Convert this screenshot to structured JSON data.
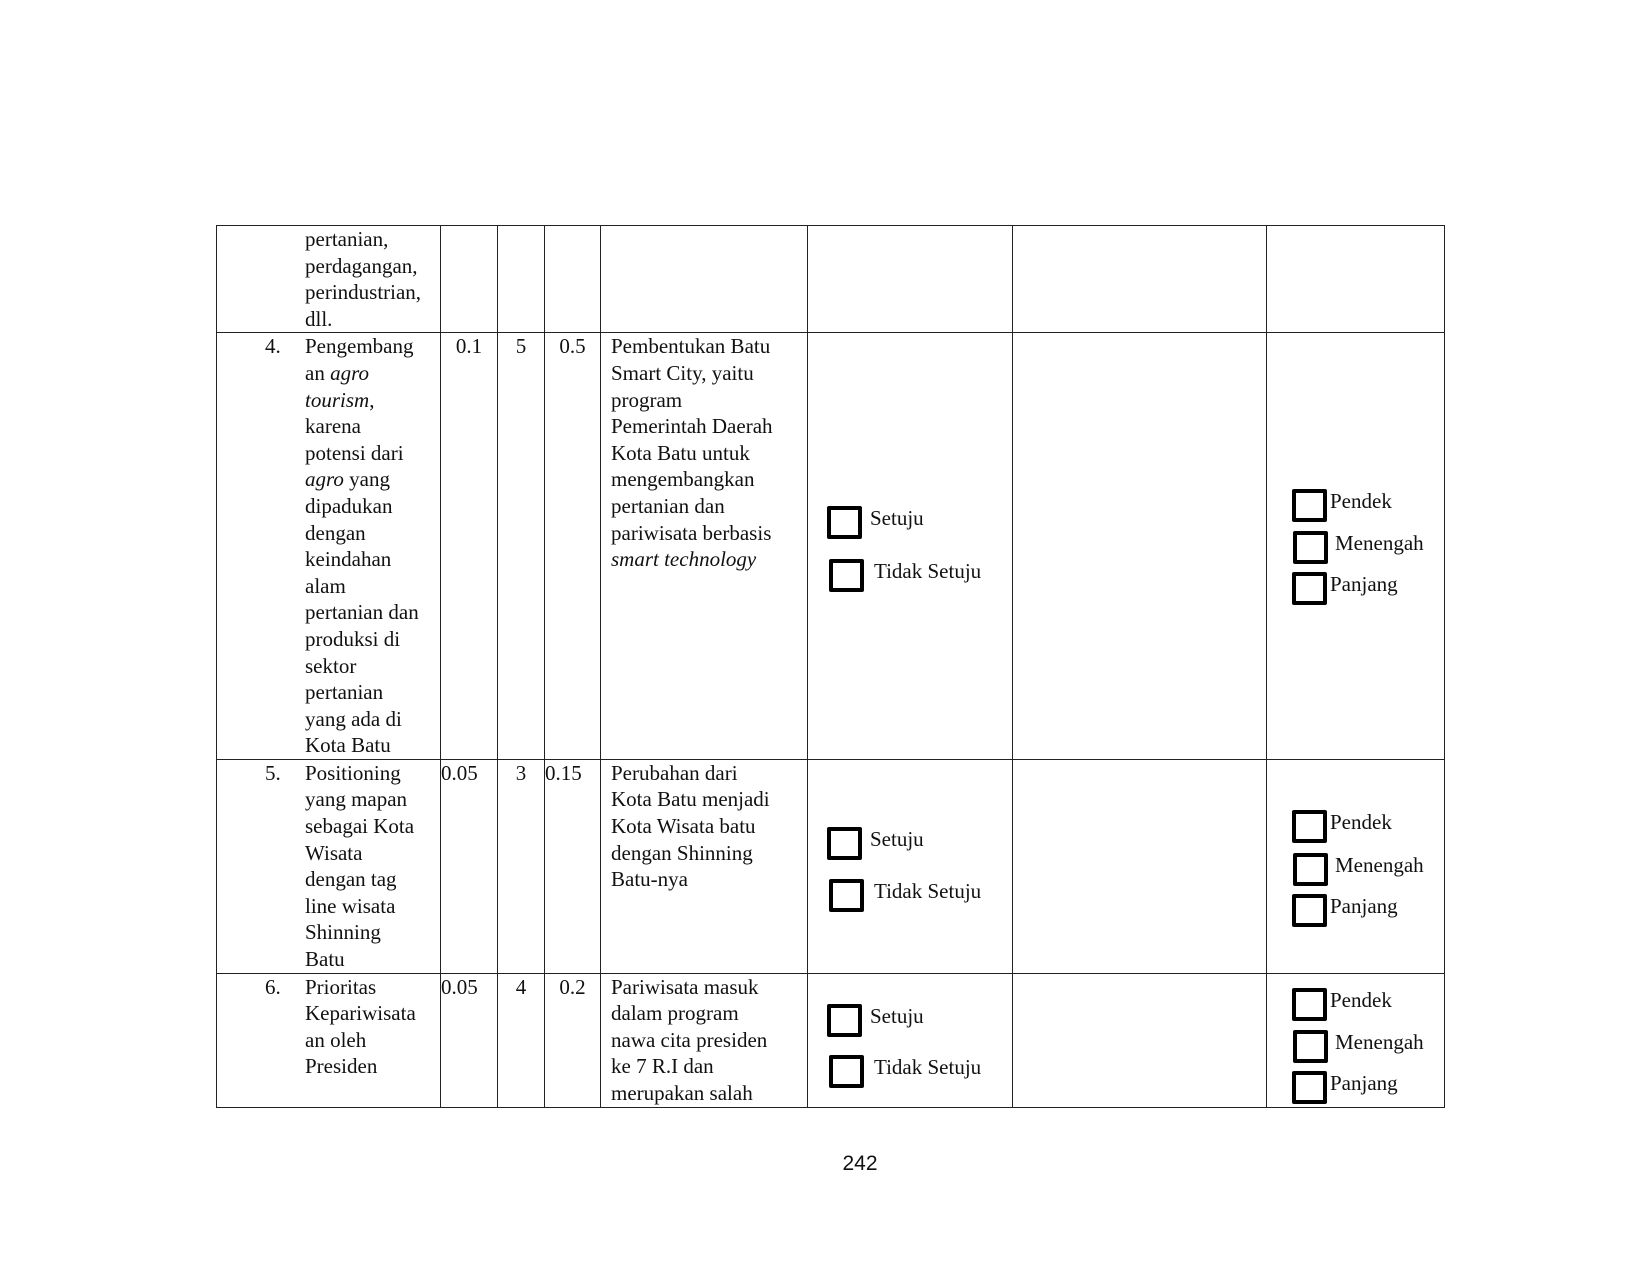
{
  "table": {
    "rows": [
      {
        "number": "",
        "indicator": [
          "pertanian,",
          "perdagangan,",
          "perindustrian,",
          "dll."
        ],
        "bobot": "",
        "rating": "",
        "skor": "",
        "description": [],
        "has_options": false
      },
      {
        "number": "4.",
        "indicator": [
          "Pengembang",
          [
            [
              "an ",
              0
            ],
            [
              "agro",
              1
            ]
          ],
          [
            [
              "tourism",
              1
            ],
            [
              ",",
              0
            ]
          ],
          "karena",
          "potensi dari",
          [
            [
              "agro",
              1
            ],
            [
              " yang",
              0
            ]
          ],
          "dipadukan",
          "dengan",
          "keindahan",
          "alam",
          "pertanian dan",
          "produksi di",
          "sektor",
          "pertanian",
          "yang ada di",
          "Kota Batu"
        ],
        "bobot": "0.1",
        "rating": "5",
        "skor": "0.5",
        "description": [
          "Pembentukan Batu",
          "Smart City, yaitu",
          "program",
          "Pemerintah Daerah",
          "Kota Batu untuk",
          "mengembangkan",
          "pertanian dan",
          "pariwisata berbasis",
          [
            [
              "smart technology",
              1
            ]
          ]
        ],
        "has_options": true
      },
      {
        "number": "5.",
        "indicator": [
          "Positioning",
          "yang mapan",
          "sebagai Kota",
          "Wisata",
          "dengan tag",
          "line wisata",
          "Shinning",
          "Batu"
        ],
        "bobot": "0.05",
        "rating": "3",
        "skor": "0.15",
        "description": [
          "Perubahan dari",
          "Kota Batu menjadi",
          "Kota Wisata batu",
          "dengan Shinning",
          "Batu-nya"
        ],
        "has_options": true
      },
      {
        "number": "6.",
        "indicator": [
          "Prioritas",
          "Kepariwisata",
          "an oleh",
          "Presiden"
        ],
        "bobot": "0.05",
        "rating": "4",
        "skor": "0.2",
        "description": [
          "Pariwisata masuk",
          "dalam program",
          "nawa cita presiden",
          "ke 7 R.I dan",
          "merupakan salah"
        ],
        "has_options": true
      }
    ],
    "agreement_options": [
      "Setuju",
      "Tidak Setuju"
    ],
    "term_options": [
      "Pendek",
      "Menengah",
      "Panjang"
    ]
  },
  "page_number": "242"
}
